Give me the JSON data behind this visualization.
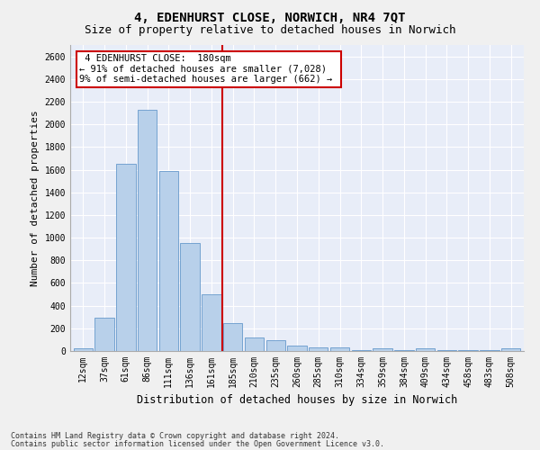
{
  "title": "4, EDENHURST CLOSE, NORWICH, NR4 7QT",
  "subtitle": "Size of property relative to detached houses in Norwich",
  "xlabel": "Distribution of detached houses by size in Norwich",
  "ylabel": "Number of detached properties",
  "footer1": "Contains HM Land Registry data © Crown copyright and database right 2024.",
  "footer2": "Contains public sector information licensed under the Open Government Licence v3.0.",
  "bar_labels": [
    "12sqm",
    "37sqm",
    "61sqm",
    "86sqm",
    "111sqm",
    "136sqm",
    "161sqm",
    "185sqm",
    "210sqm",
    "235sqm",
    "260sqm",
    "285sqm",
    "310sqm",
    "334sqm",
    "359sqm",
    "384sqm",
    "409sqm",
    "434sqm",
    "458sqm",
    "483sqm",
    "508sqm"
  ],
  "bar_values": [
    25,
    290,
    1650,
    2130,
    1590,
    955,
    500,
    245,
    120,
    95,
    50,
    30,
    35,
    10,
    20,
    10,
    20,
    5,
    5,
    5,
    20
  ],
  "bar_color": "#b8d0ea",
  "bar_edgecolor": "#6699cc",
  "property_line_label": "4 EDENHURST CLOSE:  180sqm",
  "annotation_line1": "← 91% of detached houses are smaller (7,028)",
  "annotation_line2": "9% of semi-detached houses are larger (662) →",
  "annotation_box_color": "#ffffff",
  "annotation_box_edgecolor": "#cc0000",
  "vline_color": "#cc0000",
  "ylim": [
    0,
    2700
  ],
  "yticks": [
    0,
    200,
    400,
    600,
    800,
    1000,
    1200,
    1400,
    1600,
    1800,
    2000,
    2200,
    2400,
    2600
  ],
  "background_color": "#e8edf8",
  "grid_color": "#ffffff",
  "fig_facecolor": "#f0f0f0",
  "title_fontsize": 10,
  "subtitle_fontsize": 9,
  "xlabel_fontsize": 8.5,
  "ylabel_fontsize": 8,
  "tick_fontsize": 7,
  "annotation_fontsize": 7.5,
  "footer_fontsize": 6
}
